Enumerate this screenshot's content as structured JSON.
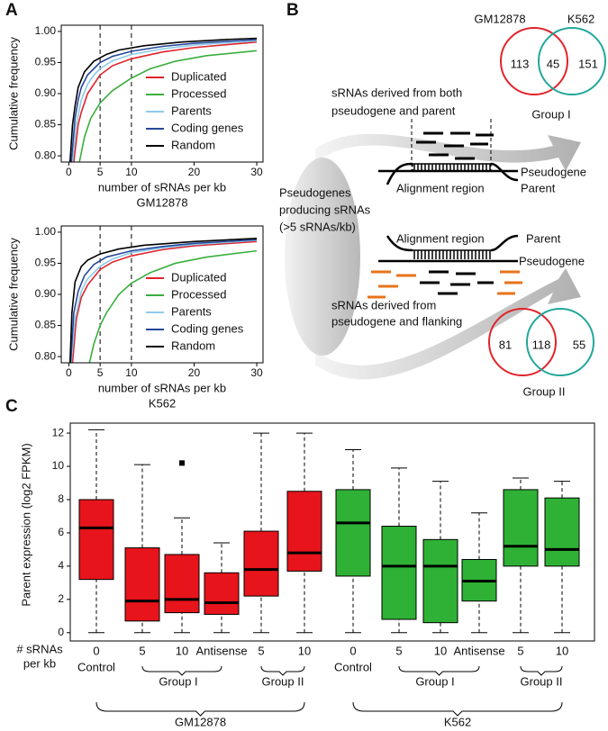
{
  "panel_labels": [
    "A",
    "B",
    "C"
  ],
  "chart_data": [
    {
      "type": "line",
      "ylabel": "Cumulative frequency",
      "xlabel": "number of sRNAs per kb",
      "subtitle": "GM12878",
      "xlim": [
        -1.2,
        31
      ],
      "ylim": [
        0.79,
        1.01
      ],
      "xticks": [
        0,
        5,
        10,
        20,
        30
      ],
      "yticks": [
        {
          "value": 0.8,
          "label": "0.80"
        },
        {
          "value": 0.85,
          "label": "0.85"
        },
        {
          "value": 0.9,
          "label": "0.90"
        },
        {
          "value": 0.95,
          "label": "0.95"
        },
        {
          "value": 1,
          "label": "1.00"
        }
      ],
      "vlines": [
        5,
        10
      ],
      "legend": "lower right",
      "series": [
        {
          "name": "Duplicated",
          "color": "#e0242b",
          "x": [
            0.8,
            1.5,
            2,
            3,
            5,
            7,
            10,
            15,
            20,
            30
          ],
          "values": [
            0.79,
            0.85,
            0.87,
            0.9,
            0.93,
            0.945,
            0.956,
            0.967,
            0.974,
            0.983
          ]
        },
        {
          "name": "Processed",
          "color": "#3aae3f",
          "x": [
            1.7,
            2.5,
            3.5,
            5,
            7,
            10,
            13,
            17,
            22,
            30
          ],
          "values": [
            0.79,
            0.83,
            0.86,
            0.885,
            0.905,
            0.925,
            0.94,
            0.952,
            0.961,
            0.969
          ]
        },
        {
          "name": "Parents",
          "color": "#8ccbea",
          "x": [
            0.6,
            1.2,
            2,
            3,
            4,
            5,
            7,
            10,
            15,
            20,
            30
          ],
          "values": [
            0.79,
            0.85,
            0.89,
            0.915,
            0.93,
            0.94,
            0.953,
            0.963,
            0.972,
            0.978,
            0.985
          ]
        },
        {
          "name": "Coding genes",
          "color": "#27479a",
          "x": [
            0.4,
            1,
            1.5,
            2,
            3,
            5,
            7,
            10,
            15,
            20,
            30
          ],
          "values": [
            0.79,
            0.86,
            0.89,
            0.91,
            0.93,
            0.95,
            0.96,
            0.968,
            0.976,
            0.981,
            0.987
          ]
        },
        {
          "name": "Random",
          "color": "#000000",
          "x": [
            0.2,
            0.6,
            1,
            1.5,
            2.5,
            4,
            6,
            8,
            12,
            18,
            25,
            30
          ],
          "values": [
            0.79,
            0.85,
            0.88,
            0.91,
            0.935,
            0.952,
            0.963,
            0.97,
            0.977,
            0.983,
            0.987,
            0.989
          ]
        }
      ]
    },
    {
      "type": "line",
      "ylabel": "Cumulative frequency",
      "xlabel": "number of sRNAs per kb",
      "subtitle": "K562",
      "xlim": [
        -1.2,
        31
      ],
      "ylim": [
        0.79,
        1.01
      ],
      "xticks": [
        0,
        5,
        10,
        20,
        30
      ],
      "yticks": [
        {
          "value": 0.8,
          "label": "0.80"
        },
        {
          "value": 0.85,
          "label": "0.85"
        },
        {
          "value": 0.9,
          "label": "0.90"
        },
        {
          "value": 0.95,
          "label": "0.95"
        },
        {
          "value": 1,
          "label": "1.00"
        }
      ],
      "vlines": [
        5,
        10
      ],
      "legend": "lower right",
      "series": [
        {
          "name": "Duplicated",
          "color": "#e0242b",
          "x": [
            0.6,
            1.2,
            2,
            3,
            5,
            7,
            10,
            15,
            20,
            30
          ],
          "values": [
            0.79,
            0.86,
            0.895,
            0.915,
            0.94,
            0.952,
            0.962,
            0.972,
            0.978,
            0.985
          ]
        },
        {
          "name": "Processed",
          "color": "#3aae3f",
          "x": [
            3.3,
            4,
            5,
            6,
            8,
            10,
            13,
            17,
            22,
            30
          ],
          "values": [
            0.79,
            0.82,
            0.85,
            0.87,
            0.9,
            0.918,
            0.935,
            0.95,
            0.96,
            0.97
          ]
        },
        {
          "name": "Parents",
          "color": "#8ccbea",
          "x": [
            0.4,
            1,
            2,
            3,
            5,
            7,
            10,
            15,
            20,
            30
          ],
          "values": [
            0.79,
            0.86,
            0.905,
            0.925,
            0.945,
            0.957,
            0.967,
            0.975,
            0.98,
            0.987
          ]
        },
        {
          "name": "Coding genes",
          "color": "#27479a",
          "x": [
            0.3,
            0.8,
            1.5,
            2.5,
            4,
            6,
            10,
            15,
            20,
            30
          ],
          "values": [
            0.79,
            0.87,
            0.905,
            0.93,
            0.948,
            0.96,
            0.97,
            0.977,
            0.982,
            0.988
          ]
        },
        {
          "name": "Random",
          "color": "#000000",
          "x": [
            0.2,
            0.5,
            1,
            2,
            3,
            5,
            8,
            12,
            20,
            30
          ],
          "values": [
            0.79,
            0.87,
            0.92,
            0.945,
            0.955,
            0.965,
            0.973,
            0.979,
            0.985,
            0.99
          ]
        }
      ]
    },
    {
      "type": "box",
      "ylabel": "Parent expression (log2 FPKM)",
      "ylim": [
        -0.5,
        12.6
      ],
      "yticks": [
        0,
        2,
        4,
        6,
        8,
        10,
        12
      ],
      "xlabel_lines": [
        "# sRNAs",
        "per kb"
      ],
      "categories": [
        "0",
        "5",
        "10",
        "Antisense",
        "5",
        "10",
        "0",
        "5",
        "10",
        "Antisense",
        "5",
        "10"
      ],
      "subgroups": [
        "Control",
        "Group I",
        "Group II",
        "Control",
        "Group I",
        "Group II"
      ],
      "cell_lines": [
        "GM12878",
        "K562"
      ],
      "boxes": [
        {
          "color": "#e8141b",
          "low": 0,
          "q1": 3.2,
          "median": 6.3,
          "q3": 8.0,
          "high": 12.2
        },
        {
          "color": "#e8141b",
          "low": 0,
          "q1": 0.7,
          "median": 1.9,
          "q3": 5.1,
          "high": 10.1
        },
        {
          "color": "#e8141b",
          "low": 0,
          "q1": 1.2,
          "median": 2.0,
          "q3": 4.7,
          "high": 6.9,
          "outliers": [
            10.2
          ]
        },
        {
          "color": "#e8141b",
          "low": 0,
          "q1": 1.1,
          "median": 1.8,
          "q3": 3.6,
          "high": 5.4
        },
        {
          "color": "#e8141b",
          "low": 0,
          "q1": 2.2,
          "median": 3.8,
          "q3": 6.1,
          "high": 12.0
        },
        {
          "color": "#e8141b",
          "low": 0,
          "q1": 3.7,
          "median": 4.8,
          "q3": 8.5,
          "high": 12.0
        },
        {
          "color": "#2eb135",
          "low": 0,
          "q1": 3.4,
          "median": 6.6,
          "q3": 8.6,
          "high": 11.0
        },
        {
          "color": "#2eb135",
          "low": 0,
          "q1": 0.8,
          "median": 4.0,
          "q3": 6.4,
          "high": 9.9
        },
        {
          "color": "#2eb135",
          "low": 0,
          "q1": 0.6,
          "median": 4.0,
          "q3": 5.6,
          "high": 9.1
        },
        {
          "color": "#2eb135",
          "low": 0,
          "q1": 1.9,
          "median": 3.1,
          "q3": 4.4,
          "high": 7.2
        },
        {
          "color": "#2eb135",
          "low": 0,
          "q1": 4.0,
          "median": 5.2,
          "q3": 8.6,
          "high": 9.3
        },
        {
          "color": "#2eb135",
          "low": 0,
          "q1": 4.0,
          "median": 5.0,
          "q3": 8.1,
          "high": 9.1
        }
      ]
    }
  ],
  "diagram": {
    "venn_top": {
      "left_label": "GM12878",
      "right_label": "K562",
      "left": "113",
      "both": "45",
      "right": "151",
      "group": "Group I"
    },
    "venn_bottom": {
      "left": "81",
      "both": "118",
      "right": "55",
      "group": "Group II"
    },
    "top_caption": [
      "sRNAs derived from both",
      "pseudogene and parent"
    ],
    "top_alignment": "Alignment region",
    "top_upper": "Pseudogene",
    "top_lower": "Parent",
    "source": [
      "Pseudogenes",
      "producing sRNAs",
      "(>5 sRNAs/kb)"
    ],
    "bottom_alignment": "Alignment region",
    "bottom_upper": "Parent",
    "bottom_lower": "Pseudogene",
    "bottom_caption": [
      "sRNAs derived from",
      "pseudogene and flanking"
    ]
  }
}
